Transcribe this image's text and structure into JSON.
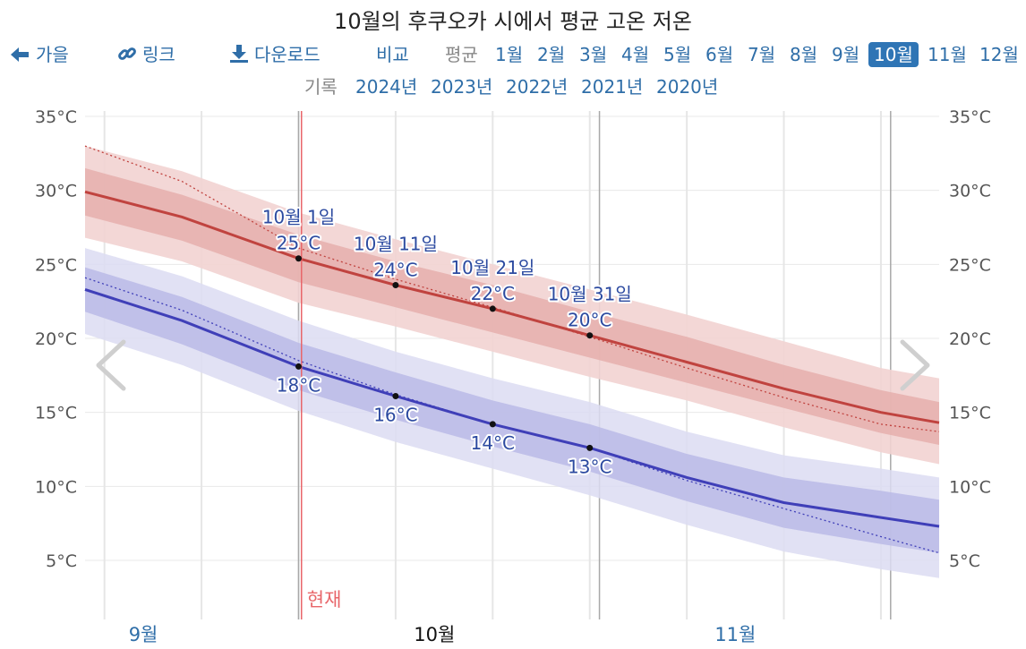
{
  "title": "10월의 후쿠오카 시에서 평균 고온 저온",
  "nav": {
    "back_label": "가을",
    "link_label": "링크",
    "download_label": "다운로드",
    "compare_label": "비교",
    "average_label": "평균",
    "months": [
      "1월",
      "2월",
      "3월",
      "4월",
      "5월",
      "6월",
      "7월",
      "8월",
      "9월",
      "10월",
      "11월",
      "12월"
    ],
    "active_month": "10월",
    "records_label": "기록",
    "years": [
      "2024년",
      "2023년",
      "2022년",
      "2021년",
      "2020년"
    ]
  },
  "now_label": "현재",
  "colors": {
    "high_line": "#c0433f",
    "high_band_inner": "#e5acaa",
    "high_band_outer": "#f2d3d2",
    "low_line": "#3f3fb8",
    "low_band_inner": "#b8b8e6",
    "low_band_outer": "#dcdcf2",
    "now_line": "#e8666a",
    "link": "#2f6ea8"
  },
  "chart_data": {
    "type": "line",
    "x_unit": "day_of_year",
    "xlim": [
      252,
      340
    ],
    "ylim": [
      2,
      35
    ],
    "y_ticks": [
      5,
      10,
      15,
      20,
      25,
      30,
      35
    ],
    "y_tick_labels": [
      "5°C",
      "10°C",
      "15°C",
      "20°C",
      "25°C",
      "30°C",
      "35°C"
    ],
    "month_labels": [
      {
        "label": "9월",
        "day": 258
      },
      {
        "label": "10월",
        "day": 288
      },
      {
        "label": "11월",
        "day": 319
      }
    ],
    "now_day": 274.3,
    "series": [
      {
        "name": "high",
        "x": [
          252,
          262,
          274,
          284,
          294,
          304,
          314,
          324,
          334,
          340
        ],
        "values": [
          29.9,
          28.2,
          25.4,
          23.6,
          22.0,
          20.2,
          18.4,
          16.6,
          15.0,
          14.3
        ],
        "p25": [
          28.3,
          26.6,
          23.8,
          22.1,
          20.4,
          18.7,
          17.0,
          15.3,
          13.6,
          12.8
        ],
        "p75": [
          31.5,
          29.7,
          27.0,
          25.2,
          23.6,
          21.8,
          20.1,
          18.2,
          16.5,
          15.7
        ],
        "p10": [
          26.8,
          25.2,
          22.4,
          20.8,
          19.1,
          17.4,
          15.8,
          14.0,
          12.3,
          11.5
        ],
        "p90": [
          33.0,
          31.3,
          28.5,
          26.7,
          25.0,
          23.3,
          21.6,
          19.8,
          18.0,
          17.3
        ],
        "trend": [
          33.0,
          30.6,
          26.1,
          24.0,
          22.1,
          20.1,
          18.0,
          16.0,
          14.2,
          13.7
        ]
      },
      {
        "name": "low",
        "x": [
          252,
          262,
          274,
          284,
          294,
          304,
          314,
          324,
          334,
          340
        ],
        "values": [
          23.3,
          21.2,
          18.1,
          16.1,
          14.2,
          12.6,
          10.6,
          8.9,
          7.9,
          7.3
        ],
        "p25": [
          21.8,
          19.6,
          16.5,
          14.5,
          12.7,
          11.0,
          9.0,
          7.2,
          6.1,
          5.5
        ],
        "p75": [
          24.8,
          22.8,
          19.7,
          17.7,
          15.8,
          14.2,
          12.2,
          10.6,
          9.7,
          9.1
        ],
        "p10": [
          20.3,
          18.2,
          15.1,
          13.0,
          11.2,
          9.4,
          7.4,
          5.6,
          4.4,
          3.8
        ],
        "p90": [
          26.1,
          24.2,
          21.2,
          19.1,
          17.3,
          15.7,
          13.7,
          12.1,
          11.2,
          10.6
        ],
        "trend": [
          24.1,
          21.9,
          18.5,
          16.2,
          14.2,
          12.6,
          10.4,
          8.5,
          6.6,
          5.5
        ]
      }
    ],
    "annotations": [
      {
        "day": 274,
        "date": "10월 1일",
        "high": "25°C",
        "low": "18°C",
        "high_value": 25.4,
        "low_value": 18.1
      },
      {
        "day": 284,
        "date": "10월 11일",
        "high": "24°C",
        "low": "16°C",
        "high_value": 23.6,
        "low_value": 16.1
      },
      {
        "day": 294,
        "date": "10월 21일",
        "high": "22°C",
        "low": "14°C",
        "high_value": 22.0,
        "low_value": 14.2
      },
      {
        "day": 304,
        "date": "10월 31일",
        "high": "20°C",
        "low": "13°C",
        "high_value": 20.2,
        "low_value": 12.6
      }
    ]
  }
}
